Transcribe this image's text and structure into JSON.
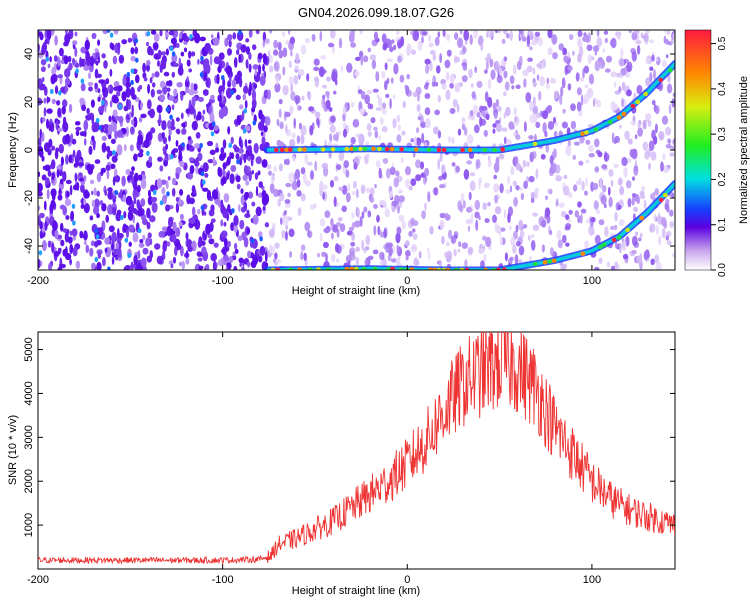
{
  "title": "GN04.2026.099.18.07.G26",
  "chart_data": [
    {
      "type": "heatmap",
      "xlabel": "Height of straight line (km)",
      "ylabel": "Frequency (Hz)",
      "xlim": [
        -200,
        145
      ],
      "ylim": [
        -50,
        50
      ],
      "xticks": [
        -200,
        -100,
        0,
        100
      ],
      "yticks": [
        -40,
        -20,
        0,
        20,
        40
      ],
      "colorbar": {
        "label": "Normalized spectral amplitude",
        "range": [
          0,
          0.53
        ],
        "ticks": [
          0.0,
          0.1,
          0.2,
          0.3,
          0.4,
          0.5
        ]
      },
      "signal_onset_km": -76,
      "tracks": [
        {
          "x": [
            -76,
            -20,
            20,
            50,
            80,
            100,
            115,
            130,
            145
          ],
          "y": [
            0,
            0.5,
            0,
            0,
            4,
            8,
            14,
            24,
            36
          ]
        },
        {
          "x": [
            -76,
            -20,
            20,
            50,
            80,
            100,
            115,
            130,
            145
          ],
          "y": [
            -50,
            -49.5,
            -50,
            -50,
            -46,
            -42,
            -36,
            -26,
            -14
          ]
        }
      ]
    },
    {
      "type": "line",
      "xlabel": "Height of straight line (km)",
      "ylabel": "SNR (10 * v/v)",
      "xlim": [
        -200,
        145
      ],
      "ylim": [
        0,
        5400
      ],
      "xticks": [
        -200,
        -100,
        0,
        100
      ],
      "yticks": [
        1000,
        2000,
        3000,
        4000,
        5000
      ],
      "color": "#ee3333",
      "series": [
        {
          "x": [
            -200,
            -150,
            -100,
            -80,
            -74,
            -70,
            -60,
            -50,
            -40,
            -30,
            -20,
            -10,
            0,
            10,
            20,
            30,
            40,
            50,
            55,
            60,
            70,
            80,
            90,
            100,
            110,
            120,
            130,
            145
          ],
          "values": [
            200,
            200,
            200,
            220,
            300,
            550,
            700,
            900,
            1100,
            1400,
            1700,
            2000,
            2400,
            2900,
            3600,
            4200,
            4500,
            4700,
            4700,
            4600,
            4100,
            3200,
            2600,
            2000,
            1600,
            1350,
            1200,
            1000
          ]
        }
      ]
    }
  ]
}
